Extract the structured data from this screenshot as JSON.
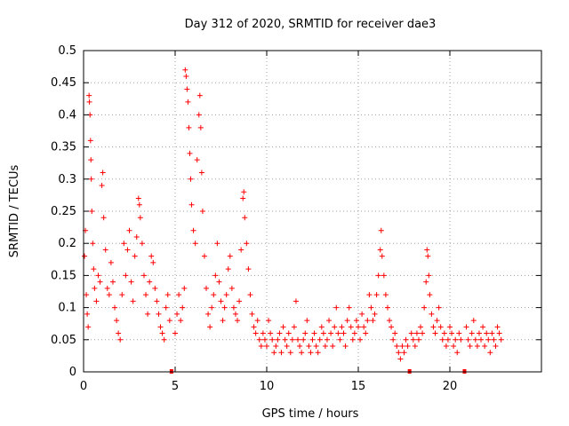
{
  "chart_data": {
    "type": "scatter",
    "title": "Day 312 of 2020, SRMTID for receiver dae3",
    "xlabel": "GPS time / hours",
    "ylabel": "SRMTID / TECUs",
    "xlim": [
      0,
      25
    ],
    "ylim": [
      0,
      0.5
    ],
    "xticks": [
      0,
      5,
      10,
      15,
      20
    ],
    "yticks": [
      0,
      0.05,
      0.1,
      0.15,
      0.2,
      0.25,
      0.3,
      0.35,
      0.4,
      0.45,
      0.5
    ],
    "xtick_labels": [
      "0",
      "5",
      "10",
      "15",
      "20"
    ],
    "ytick_labels": [
      "0",
      "0.05",
      "0.1",
      "0.15",
      "0.2",
      "0.25",
      "0.3",
      "0.35",
      "0.4",
      "0.45",
      "0.5"
    ],
    "grid": true,
    "marker": "+",
    "color": "#ff0000",
    "gap_markers_x": [
      4.8,
      17.8,
      20.8
    ],
    "series": [
      {
        "name": "SRMTID",
        "points": [
          [
            0.05,
            0.18
          ],
          [
            0.1,
            0.22
          ],
          [
            0.15,
            0.12
          ],
          [
            0.2,
            0.09
          ],
          [
            0.25,
            0.07
          ],
          [
            0.3,
            0.43
          ],
          [
            0.32,
            0.42
          ],
          [
            0.35,
            0.4
          ],
          [
            0.38,
            0.36
          ],
          [
            0.4,
            0.33
          ],
          [
            0.42,
            0.3
          ],
          [
            0.45,
            0.25
          ],
          [
            0.5,
            0.2
          ],
          [
            0.55,
            0.16
          ],
          [
            0.6,
            0.13
          ],
          [
            0.7,
            0.11
          ],
          [
            0.8,
            0.15
          ],
          [
            0.9,
            0.14
          ],
          [
            1.0,
            0.29
          ],
          [
            1.05,
            0.31
          ],
          [
            1.1,
            0.24
          ],
          [
            1.2,
            0.19
          ],
          [
            1.3,
            0.13
          ],
          [
            1.4,
            0.12
          ],
          [
            1.5,
            0.17
          ],
          [
            1.6,
            0.14
          ],
          [
            1.7,
            0.1
          ],
          [
            1.8,
            0.08
          ],
          [
            1.9,
            0.06
          ],
          [
            2.0,
            0.05
          ],
          [
            2.1,
            0.12
          ],
          [
            2.2,
            0.2
          ],
          [
            2.3,
            0.15
          ],
          [
            2.4,
            0.19
          ],
          [
            2.5,
            0.22
          ],
          [
            2.6,
            0.14
          ],
          [
            2.7,
            0.11
          ],
          [
            2.8,
            0.18
          ],
          [
            2.9,
            0.21
          ],
          [
            3.0,
            0.27
          ],
          [
            3.05,
            0.26
          ],
          [
            3.1,
            0.24
          ],
          [
            3.2,
            0.2
          ],
          [
            3.3,
            0.15
          ],
          [
            3.4,
            0.12
          ],
          [
            3.5,
            0.09
          ],
          [
            3.6,
            0.14
          ],
          [
            3.7,
            0.18
          ],
          [
            3.8,
            0.17
          ],
          [
            3.9,
            0.13
          ],
          [
            4.0,
            0.11
          ],
          [
            4.1,
            0.09
          ],
          [
            4.2,
            0.07
          ],
          [
            4.3,
            0.06
          ],
          [
            4.4,
            0.05
          ],
          [
            4.5,
            0.1
          ],
          [
            4.6,
            0.12
          ],
          [
            4.7,
            0.08
          ],
          [
            5.0,
            0.06
          ],
          [
            5.1,
            0.09
          ],
          [
            5.2,
            0.12
          ],
          [
            5.3,
            0.08
          ],
          [
            5.4,
            0.1
          ],
          [
            5.5,
            0.13
          ],
          [
            5.55,
            0.47
          ],
          [
            5.6,
            0.46
          ],
          [
            5.65,
            0.44
          ],
          [
            5.7,
            0.42
          ],
          [
            5.75,
            0.38
          ],
          [
            5.8,
            0.34
          ],
          [
            5.85,
            0.3
          ],
          [
            5.9,
            0.26
          ],
          [
            6.0,
            0.22
          ],
          [
            6.1,
            0.2
          ],
          [
            6.2,
            0.33
          ],
          [
            6.3,
            0.4
          ],
          [
            6.35,
            0.43
          ],
          [
            6.4,
            0.38
          ],
          [
            6.45,
            0.31
          ],
          [
            6.5,
            0.25
          ],
          [
            6.6,
            0.18
          ],
          [
            6.7,
            0.13
          ],
          [
            6.8,
            0.09
          ],
          [
            6.9,
            0.07
          ],
          [
            7.0,
            0.1
          ],
          [
            7.1,
            0.12
          ],
          [
            7.2,
            0.15
          ],
          [
            7.3,
            0.2
          ],
          [
            7.4,
            0.14
          ],
          [
            7.5,
            0.11
          ],
          [
            7.6,
            0.08
          ],
          [
            7.7,
            0.1
          ],
          [
            7.8,
            0.12
          ],
          [
            7.9,
            0.16
          ],
          [
            8.0,
            0.18
          ],
          [
            8.1,
            0.13
          ],
          [
            8.2,
            0.1
          ],
          [
            8.3,
            0.09
          ],
          [
            8.4,
            0.08
          ],
          [
            8.5,
            0.11
          ],
          [
            8.6,
            0.19
          ],
          [
            8.7,
            0.27
          ],
          [
            8.75,
            0.28
          ],
          [
            8.8,
            0.24
          ],
          [
            8.9,
            0.2
          ],
          [
            9.0,
            0.16
          ],
          [
            9.1,
            0.12
          ],
          [
            9.2,
            0.09
          ],
          [
            9.3,
            0.07
          ],
          [
            9.4,
            0.06
          ],
          [
            9.5,
            0.08
          ],
          [
            9.6,
            0.05
          ],
          [
            9.7,
            0.04
          ],
          [
            9.8,
            0.06
          ],
          [
            9.9,
            0.05
          ],
          [
            10.0,
            0.04
          ],
          [
            10.1,
            0.08
          ],
          [
            10.2,
            0.06
          ],
          [
            10.3,
            0.05
          ],
          [
            10.4,
            0.03
          ],
          [
            10.5,
            0.04
          ],
          [
            10.6,
            0.05
          ],
          [
            10.7,
            0.06
          ],
          [
            10.8,
            0.03
          ],
          [
            10.9,
            0.07
          ],
          [
            11.0,
            0.05
          ],
          [
            11.1,
            0.04
          ],
          [
            11.2,
            0.06
          ],
          [
            11.3,
            0.03
          ],
          [
            11.4,
            0.05
          ],
          [
            11.5,
            0.07
          ],
          [
            11.6,
            0.11
          ],
          [
            11.7,
            0.05
          ],
          [
            11.8,
            0.04
          ],
          [
            11.9,
            0.03
          ],
          [
            12.0,
            0.05
          ],
          [
            12.1,
            0.06
          ],
          [
            12.2,
            0.08
          ],
          [
            12.3,
            0.04
          ],
          [
            12.4,
            0.03
          ],
          [
            12.5,
            0.05
          ],
          [
            12.6,
            0.06
          ],
          [
            12.7,
            0.04
          ],
          [
            12.8,
            0.03
          ],
          [
            12.9,
            0.05
          ],
          [
            13.0,
            0.07
          ],
          [
            13.1,
            0.06
          ],
          [
            13.2,
            0.04
          ],
          [
            13.3,
            0.05
          ],
          [
            13.4,
            0.08
          ],
          [
            13.5,
            0.06
          ],
          [
            13.6,
            0.04
          ],
          [
            13.7,
            0.07
          ],
          [
            13.8,
            0.1
          ],
          [
            13.9,
            0.06
          ],
          [
            14.0,
            0.05
          ],
          [
            14.1,
            0.07
          ],
          [
            14.2,
            0.06
          ],
          [
            14.3,
            0.04
          ],
          [
            14.4,
            0.08
          ],
          [
            14.5,
            0.1
          ],
          [
            14.6,
            0.07
          ],
          [
            14.7,
            0.05
          ],
          [
            14.8,
            0.06
          ],
          [
            14.9,
            0.08
          ],
          [
            15.0,
            0.07
          ],
          [
            15.1,
            0.05
          ],
          [
            15.2,
            0.09
          ],
          [
            15.3,
            0.07
          ],
          [
            15.4,
            0.06
          ],
          [
            15.5,
            0.08
          ],
          [
            15.6,
            0.12
          ],
          [
            15.7,
            0.1
          ],
          [
            15.8,
            0.08
          ],
          [
            15.9,
            0.09
          ],
          [
            16.0,
            0.12
          ],
          [
            16.1,
            0.15
          ],
          [
            16.2,
            0.19
          ],
          [
            16.25,
            0.22
          ],
          [
            16.3,
            0.18
          ],
          [
            16.4,
            0.15
          ],
          [
            16.5,
            0.12
          ],
          [
            16.6,
            0.1
          ],
          [
            16.7,
            0.08
          ],
          [
            16.8,
            0.07
          ],
          [
            16.9,
            0.05
          ],
          [
            17.0,
            0.06
          ],
          [
            17.1,
            0.04
          ],
          [
            17.2,
            0.03
          ],
          [
            17.3,
            0.02
          ],
          [
            17.4,
            0.04
          ],
          [
            17.5,
            0.03
          ],
          [
            17.6,
            0.05
          ],
          [
            17.7,
            0.04
          ],
          [
            17.9,
            0.06
          ],
          [
            18.0,
            0.05
          ],
          [
            18.1,
            0.04
          ],
          [
            18.2,
            0.06
          ],
          [
            18.3,
            0.05
          ],
          [
            18.4,
            0.07
          ],
          [
            18.5,
            0.06
          ],
          [
            18.6,
            0.1
          ],
          [
            18.7,
            0.14
          ],
          [
            18.75,
            0.19
          ],
          [
            18.8,
            0.18
          ],
          [
            18.85,
            0.15
          ],
          [
            18.9,
            0.12
          ],
          [
            19.0,
            0.09
          ],
          [
            19.1,
            0.07
          ],
          [
            19.2,
            0.06
          ],
          [
            19.3,
            0.08
          ],
          [
            19.4,
            0.1
          ],
          [
            19.5,
            0.07
          ],
          [
            19.6,
            0.05
          ],
          [
            19.7,
            0.06
          ],
          [
            19.8,
            0.04
          ],
          [
            19.9,
            0.05
          ],
          [
            20.0,
            0.07
          ],
          [
            20.1,
            0.06
          ],
          [
            20.2,
            0.04
          ],
          [
            20.3,
            0.05
          ],
          [
            20.4,
            0.03
          ],
          [
            20.5,
            0.06
          ],
          [
            20.6,
            0.05
          ],
          [
            20.9,
            0.07
          ],
          [
            21.0,
            0.05
          ],
          [
            21.1,
            0.04
          ],
          [
            21.2,
            0.06
          ],
          [
            21.3,
            0.08
          ],
          [
            21.4,
            0.05
          ],
          [
            21.5,
            0.04
          ],
          [
            21.6,
            0.06
          ],
          [
            21.7,
            0.05
          ],
          [
            21.8,
            0.07
          ],
          [
            21.9,
            0.04
          ],
          [
            22.0,
            0.06
          ],
          [
            22.1,
            0.05
          ],
          [
            22.2,
            0.03
          ],
          [
            22.3,
            0.06
          ],
          [
            22.4,
            0.05
          ],
          [
            22.5,
            0.04
          ],
          [
            22.6,
            0.07
          ],
          [
            22.7,
            0.06
          ],
          [
            22.8,
            0.05
          ]
        ]
      }
    ]
  }
}
